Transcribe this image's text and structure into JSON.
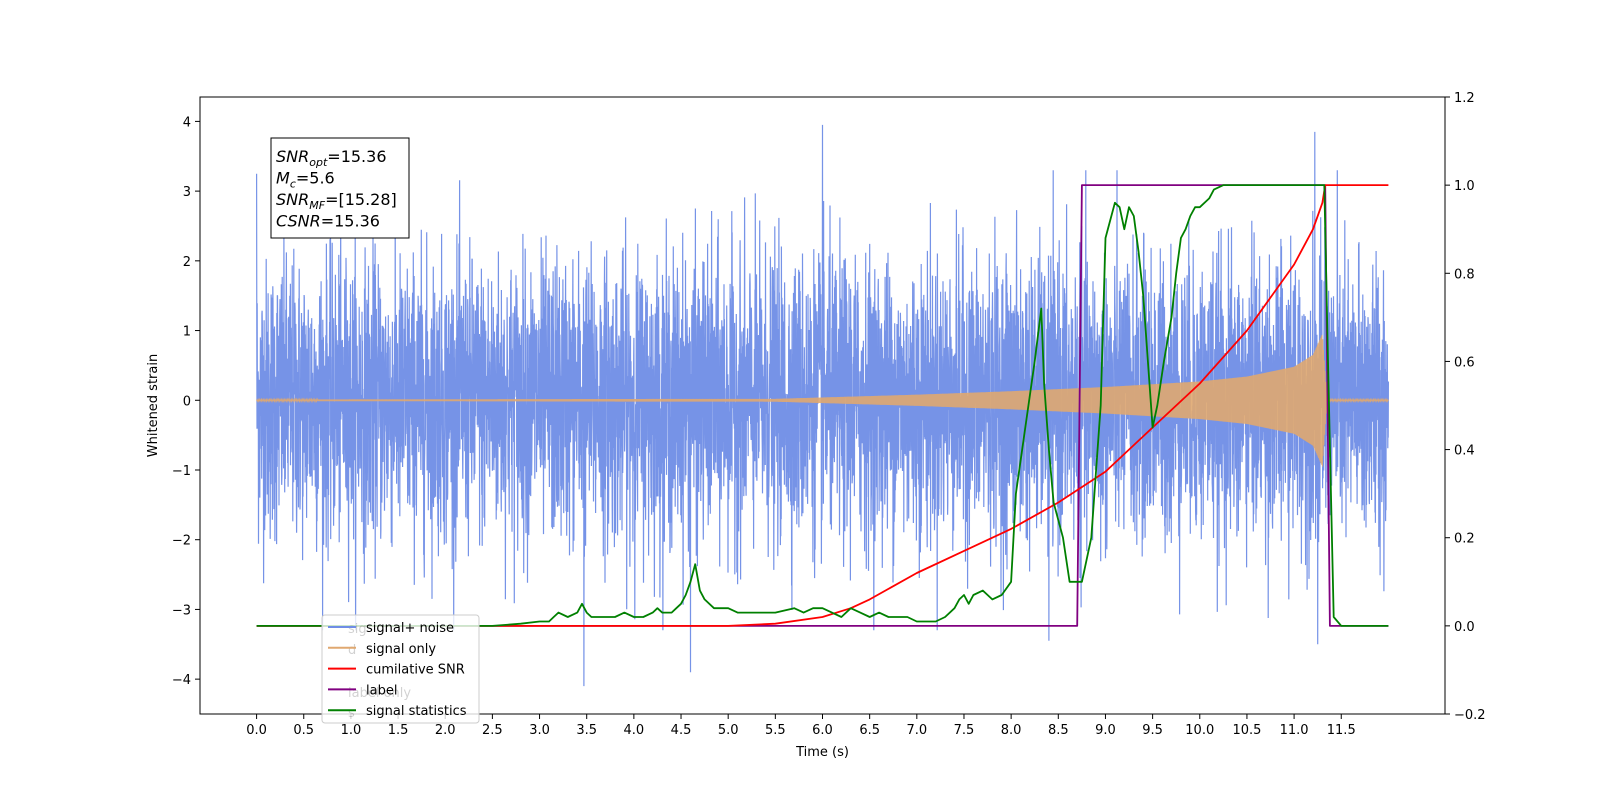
{
  "chart_data": {
    "type": "line",
    "title": "",
    "xlabel": "Time (s)",
    "ylabel": "Whitened strain",
    "xlim": [
      -0.6,
      12.6
    ],
    "ylim": [
      -4.5,
      4.35
    ],
    "y2lim": [
      -0.2,
      1.2
    ],
    "xticks": [
      "0.0",
      "0.5",
      "1.0",
      "1.5",
      "2.0",
      "2.5",
      "3.0",
      "3.5",
      "4.0",
      "4.5",
      "5.0",
      "5.5",
      "6.0",
      "6.5",
      "7.0",
      "7.5",
      "8.0",
      "8.5",
      "9.0",
      "9.5",
      "10.0",
      "10.5",
      "11.0",
      "11.5"
    ],
    "yticks": [
      "−4",
      "−3",
      "−2",
      "−1",
      "0",
      "1",
      "2",
      "3",
      "4"
    ],
    "y2ticks": [
      "−0.2",
      "0.0",
      "0.2",
      "0.4",
      "0.6",
      "0.8",
      "1.0",
      "1.2"
    ],
    "grid": false,
    "legend": {
      "position": "lower-left",
      "entries": [
        "signal+ noise",
        "signal only",
        "cumilative SNR",
        "label",
        "signal statistics"
      ],
      "obscured_text": [
        "sig",
        "d",
        "label only",
        "s"
      ]
    },
    "annotation": {
      "lines": [
        {
          "base": "SNR",
          "sub": "opt",
          "rest": "=15.36"
        },
        {
          "base": "M",
          "sub": "c",
          "rest": "=5.6"
        },
        {
          "base": "SNR",
          "sub": "MF",
          "rest": "=[15.28]"
        },
        {
          "base": "CSNR",
          "sub": "",
          "rest": "=15.36"
        }
      ]
    },
    "series": [
      {
        "name": "signal+ noise",
        "axis": "left",
        "color": "#6f8de6",
        "noise_amplitude_std": 1.0,
        "t_range": [
          0.0,
          12.0
        ],
        "peaks": [
          [
            0.0,
            3.25
          ],
          [
            6.0,
            3.95
          ],
          [
            11.22,
            3.85
          ],
          [
            3.47,
            -4.1
          ],
          [
            4.6,
            -3.9
          ],
          [
            8.4,
            -3.45
          ],
          [
            11.25,
            -3.5
          ]
        ]
      },
      {
        "name": "signal only",
        "axis": "left",
        "color": "#e0a870",
        "envelope": {
          "t": [
            0.0,
            5.5,
            6.0,
            7.0,
            8.0,
            9.0,
            10.0,
            10.5,
            11.0,
            11.2,
            11.3,
            11.35
          ],
          "amp": [
            0.01,
            0.02,
            0.04,
            0.08,
            0.13,
            0.19,
            0.27,
            0.34,
            0.48,
            0.65,
            0.95,
            0.0
          ]
        },
        "t_end": 12.0
      },
      {
        "name": "cumilative SNR",
        "axis": "right",
        "color": "#ff0000",
        "x": [
          0.0,
          4.0,
          4.5,
          5.0,
          5.5,
          6.0,
          6.3,
          6.5,
          7.0,
          7.5,
          8.0,
          8.5,
          9.0,
          9.5,
          10.0,
          10.5,
          11.0,
          11.2,
          11.3,
          11.33,
          12.0
        ],
        "y": [
          0.0,
          0.0,
          0.0,
          0.0,
          0.005,
          0.02,
          0.04,
          0.06,
          0.12,
          0.17,
          0.22,
          0.28,
          0.35,
          0.45,
          0.55,
          0.67,
          0.82,
          0.9,
          0.96,
          1.0,
          1.0
        ]
      },
      {
        "name": "label",
        "axis": "right",
        "color": "#800080",
        "x": [
          0.0,
          8.7,
          8.75,
          11.33,
          11.38,
          12.0
        ],
        "y": [
          0.0,
          0.0,
          1.0,
          1.0,
          0.0,
          0.0
        ]
      },
      {
        "name": "signal statistics",
        "axis": "right",
        "color": "#008000",
        "x": [
          0.0,
          2.2,
          2.5,
          2.8,
          3.0,
          3.1,
          3.15,
          3.2,
          3.3,
          3.4,
          3.45,
          3.5,
          3.55,
          3.7,
          3.8,
          3.9,
          4.0,
          4.1,
          4.2,
          4.25,
          4.3,
          4.4,
          4.45,
          4.5,
          4.55,
          4.6,
          4.65,
          4.7,
          4.75,
          4.85,
          5.0,
          5.1,
          5.3,
          5.5,
          5.7,
          5.8,
          5.9,
          6.0,
          6.1,
          6.2,
          6.3,
          6.4,
          6.5,
          6.6,
          6.7,
          6.8,
          6.9,
          7.0,
          7.2,
          7.3,
          7.4,
          7.45,
          7.5,
          7.55,
          7.6,
          7.7,
          7.75,
          7.8,
          7.9,
          8.0,
          8.05,
          8.15,
          8.25,
          8.32,
          8.35,
          8.4,
          8.45,
          8.55,
          8.62,
          8.7,
          8.75,
          8.85,
          8.95,
          9.0,
          9.05,
          9.1,
          9.15,
          9.2,
          9.25,
          9.3,
          9.35,
          9.4,
          9.5,
          9.55,
          9.62,
          9.7,
          9.75,
          9.8,
          9.85,
          9.9,
          9.95,
          10.0,
          10.1,
          10.15,
          10.25,
          10.3,
          10.5,
          10.8,
          11.0,
          11.2,
          11.3,
          11.32,
          11.36,
          11.42,
          11.5,
          12.0
        ],
        "y": [
          0.0,
          0.0,
          0.0,
          0.005,
          0.01,
          0.01,
          0.02,
          0.03,
          0.02,
          0.03,
          0.05,
          0.03,
          0.02,
          0.02,
          0.02,
          0.03,
          0.02,
          0.02,
          0.03,
          0.04,
          0.03,
          0.03,
          0.04,
          0.05,
          0.07,
          0.1,
          0.14,
          0.08,
          0.06,
          0.04,
          0.04,
          0.03,
          0.03,
          0.03,
          0.04,
          0.03,
          0.04,
          0.04,
          0.03,
          0.02,
          0.04,
          0.03,
          0.02,
          0.03,
          0.02,
          0.02,
          0.02,
          0.01,
          0.01,
          0.02,
          0.04,
          0.06,
          0.07,
          0.05,
          0.07,
          0.08,
          0.07,
          0.06,
          0.07,
          0.1,
          0.3,
          0.45,
          0.6,
          0.72,
          0.55,
          0.4,
          0.28,
          0.2,
          0.1,
          0.1,
          0.1,
          0.2,
          0.5,
          0.88,
          0.92,
          0.96,
          0.95,
          0.9,
          0.95,
          0.93,
          0.85,
          0.75,
          0.45,
          0.5,
          0.6,
          0.7,
          0.8,
          0.88,
          0.9,
          0.93,
          0.95,
          0.95,
          0.97,
          0.99,
          1.0,
          1.0,
          1.0,
          1.0,
          1.0,
          1.0,
          1.0,
          1.0,
          0.6,
          0.02,
          0.0,
          0.0
        ]
      }
    ]
  }
}
